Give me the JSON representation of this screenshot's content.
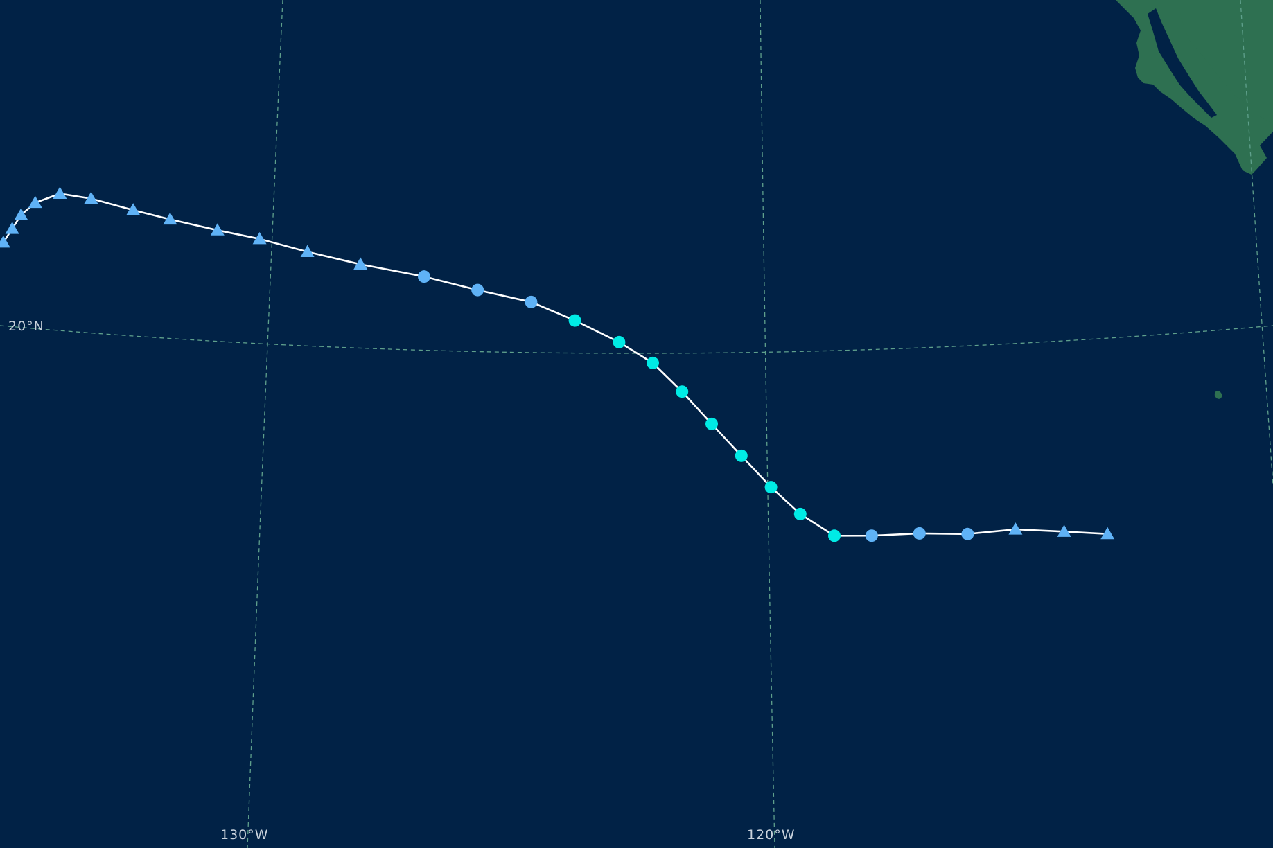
{
  "map": {
    "colors": {
      "ocean": "#012246",
      "land": "#2e7051",
      "graticule": "#5fa08c",
      "track_line": "#ffffff",
      "label_text": "#c9d2dc"
    },
    "labels": {
      "lat_20": "20°N",
      "lon_130": "130°W",
      "lon_120": "120°W"
    },
    "legend": {
      "stage_colors": {
        "cyan": "#00ebe5",
        "light_blue": "#5fb2f6"
      }
    },
    "track": [
      {
        "lon": -134.4,
        "lat": 20.8,
        "marker": "triangle",
        "color": "#5fb2f6"
      },
      {
        "lon": -134.2,
        "lat": 21.2,
        "marker": "triangle",
        "color": "#5fb2f6"
      },
      {
        "lon": -134.0,
        "lat": 21.6,
        "marker": "triangle",
        "color": "#5fb2f6"
      },
      {
        "lon": -133.7,
        "lat": 22.0,
        "marker": "triangle",
        "color": "#5fb2f6"
      },
      {
        "lon": -133.2,
        "lat": 22.4,
        "marker": "triangle",
        "color": "#5fb2f6"
      },
      {
        "lon": -132.6,
        "lat": 22.5,
        "marker": "triangle",
        "color": "#5fb2f6"
      },
      {
        "lon": -131.8,
        "lat": 22.5,
        "marker": "triangle",
        "color": "#5fb2f6"
      },
      {
        "lon": -131.1,
        "lat": 22.5,
        "marker": "triangle",
        "color": "#5fb2f6"
      },
      {
        "lon": -130.2,
        "lat": 22.5,
        "marker": "triangle",
        "color": "#5fb2f6"
      },
      {
        "lon": -129.4,
        "lat": 22.5,
        "marker": "triangle",
        "color": "#5fb2f6"
      },
      {
        "lon": -128.5,
        "lat": 22.4,
        "marker": "triangle",
        "color": "#5fb2f6"
      },
      {
        "lon": -127.5,
        "lat": 22.3,
        "marker": "triangle",
        "color": "#5fb2f6"
      },
      {
        "lon": -126.3,
        "lat": 22.2,
        "marker": "circle",
        "color": "#5fb2f6"
      },
      {
        "lon": -125.3,
        "lat": 22.0,
        "marker": "circle",
        "color": "#5fb2f6"
      },
      {
        "lon": -124.3,
        "lat": 21.8,
        "marker": "circle",
        "color": "#5fb2f6"
      },
      {
        "lon": -123.5,
        "lat": 21.4,
        "marker": "circle",
        "color": "#00ebe5"
      },
      {
        "lon": -122.7,
        "lat": 20.9,
        "marker": "circle",
        "color": "#00ebe5"
      },
      {
        "lon": -122.1,
        "lat": 20.4,
        "marker": "circle",
        "color": "#00ebe5"
      },
      {
        "lon": -121.6,
        "lat": 19.7,
        "marker": "circle",
        "color": "#00ebe5"
      },
      {
        "lon": -121.1,
        "lat": 18.9,
        "marker": "circle",
        "color": "#00ebe5"
      },
      {
        "lon": -120.6,
        "lat": 18.1,
        "marker": "circle",
        "color": "#00ebe5"
      },
      {
        "lon": -120.1,
        "lat": 17.3,
        "marker": "circle",
        "color": "#00ebe5"
      },
      {
        "lon": -119.6,
        "lat": 16.6,
        "marker": "circle",
        "color": "#00ebe5"
      },
      {
        "lon": -119.0,
        "lat": 16.0,
        "marker": "circle",
        "color": "#00ebe5"
      },
      {
        "lon": -118.3,
        "lat": 15.9,
        "marker": "circle",
        "color": "#5fb2f6"
      },
      {
        "lon": -117.4,
        "lat": 15.8,
        "marker": "circle",
        "color": "#5fb2f6"
      },
      {
        "lon": -116.5,
        "lat": 15.6,
        "marker": "circle",
        "color": "#5fb2f6"
      },
      {
        "lon": -115.6,
        "lat": 15.5,
        "marker": "triangle",
        "color": "#5fb2f6"
      },
      {
        "lon": -114.7,
        "lat": 15.2,
        "marker": "triangle",
        "color": "#5fb2f6"
      },
      {
        "lon": -113.9,
        "lat": 14.9,
        "marker": "triangle",
        "color": "#5fb2f6"
      }
    ]
  }
}
